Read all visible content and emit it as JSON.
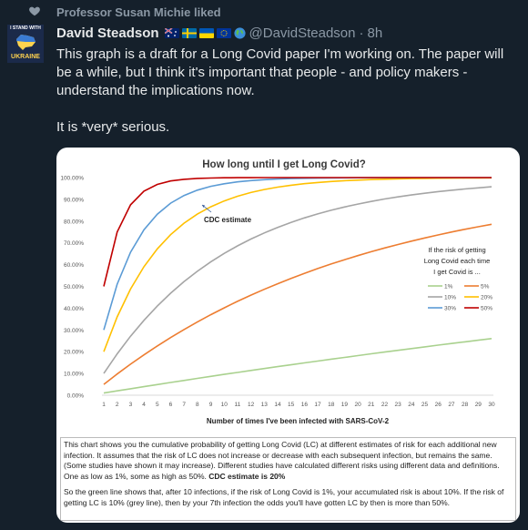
{
  "liked": {
    "text": "Professor Susan Michie liked"
  },
  "author": {
    "avatar_top": "I STAND WITH",
    "avatar_bottom": "UKRAINE",
    "name": "David Steadson",
    "handle": "@DavidSteadson",
    "separator": "·",
    "time": "8h"
  },
  "tweet": {
    "paragraph1": "This graph is a draft for a Long Covid paper I'm working on. The paper will be a while, but I think it's important that people - and policy makers - understand the implications now.",
    "paragraph2": "It is *very* serious."
  },
  "colors": {
    "background": "#15202b",
    "s1": "#a9d18e",
    "s5": "#ed7d31",
    "s10": "#a5a5a5",
    "s20": "#ffc000",
    "s30": "#5b9bd5",
    "s50": "#c00000"
  },
  "chart_data": {
    "type": "line",
    "title": "How long until I get Long Covid?",
    "xlabel": "Number of times I've been infected with SARS-CoV-2",
    "ylabel": "",
    "x": [
      1,
      2,
      3,
      4,
      5,
      6,
      7,
      8,
      9,
      10,
      11,
      12,
      13,
      14,
      15,
      16,
      17,
      18,
      19,
      20,
      21,
      22,
      23,
      24,
      25,
      26,
      27,
      28,
      29,
      30
    ],
    "ylim": [
      0,
      100
    ],
    "yticks": [
      "0.00%",
      "10.00%",
      "20.00%",
      "30.00%",
      "40.00%",
      "50.00%",
      "60.00%",
      "70.00%",
      "80.00%",
      "90.00%",
      "100.00%"
    ],
    "grid": false,
    "legend_title": "If the risk of getting Long Covid each time I get Covid is ...",
    "legend_position": "right",
    "annotation": "CDC estimate",
    "series": [
      {
        "name": "1%",
        "risk": 0.01
      },
      {
        "name": "5%",
        "risk": 0.05
      },
      {
        "name": "10%",
        "risk": 0.1
      },
      {
        "name": "20%",
        "risk": 0.2
      },
      {
        "name": "30%",
        "risk": 0.3
      },
      {
        "name": "50%",
        "risk": 0.5
      }
    ]
  },
  "caption": {
    "p1_main": "This chart shows you the cumulative probability of getting Long Covid (LC) at different estimates of risk for each additional new infection. It assumes that the risk of LC does not increase or decrease with each subsequent infection, but remains the same. (Some studies have shown it may increase). Different studies have calculated different risks using different data and definitions. One as low as 1%, some as high as 50%.",
    "p1_bold": "CDC estimate is 20%",
    "p2": "So the green line shows that, after 10 infections, if the risk of Long Covid is 1%, your accumulated risk is about 10%. If the risk of getting LC is 10% (grey line), then by your 7th infection the odds you'll have gotten LC by then is more than 50%."
  }
}
